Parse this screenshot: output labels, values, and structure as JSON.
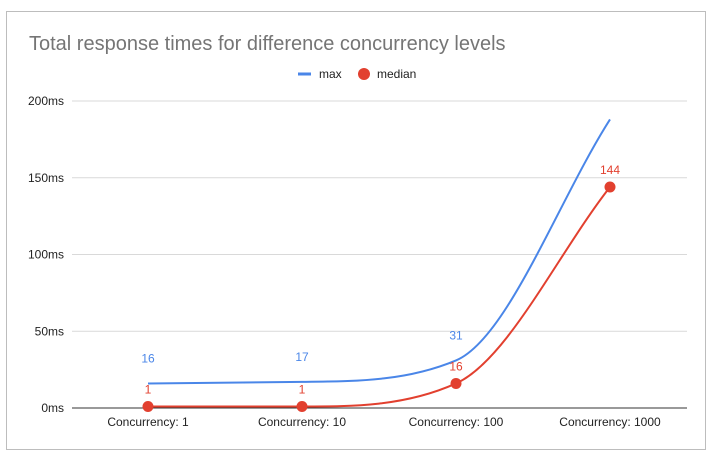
{
  "chart_data": {
    "type": "line",
    "title": "Total response times for difference concurrency levels",
    "categories": [
      "Concurrency: 1",
      "Concurrency: 10",
      "Concurrency: 100",
      "Concurrency: 1000"
    ],
    "series": [
      {
        "name": "max",
        "color": "#4a86e8",
        "values": [
          16,
          17,
          31,
          188
        ],
        "data_labels": [
          "16",
          "17",
          "31",
          ""
        ],
        "marker": "none"
      },
      {
        "name": "median",
        "color": "#e2402f",
        "values": [
          1,
          1,
          16,
          144
        ],
        "data_labels": [
          "1",
          "1",
          "16",
          "144"
        ],
        "marker": "circle"
      }
    ],
    "ylim": [
      0,
      200
    ],
    "yticks": [
      0,
      50,
      100,
      150,
      200
    ],
    "ytick_labels": [
      "0ms",
      "50ms",
      "100ms",
      "150ms",
      "200ms"
    ],
    "xlabel": "",
    "ylabel": "",
    "grid": true,
    "legend_position": "top-center"
  }
}
